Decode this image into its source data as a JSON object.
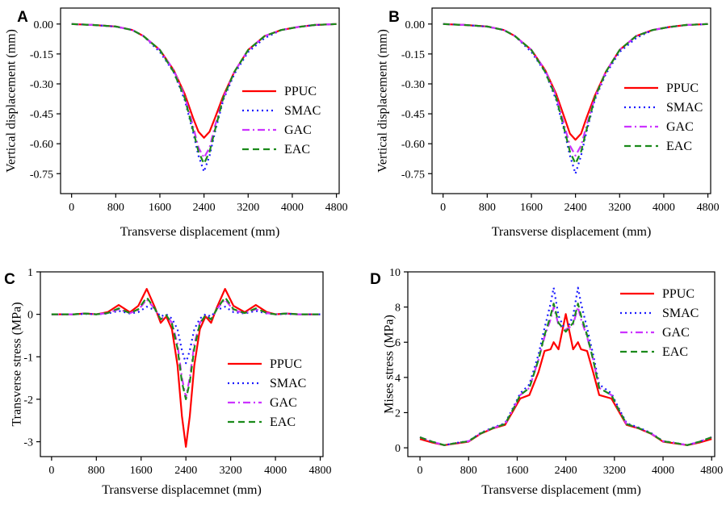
{
  "colors": {
    "PPUC": "#ff0000",
    "SMAC": "#1a1aff",
    "GAC": "#cc33ff",
    "EAC": "#1a8a1a"
  },
  "chart_data": [
    {
      "label": "A",
      "type": "line",
      "xlabel": "Transverse displacement (mm)",
      "ylabel": "Vertical displacement (mm)",
      "xlim": [
        -200,
        4850
      ],
      "ylim": [
        -0.85,
        0.08
      ],
      "xticks": [
        0,
        800,
        1600,
        2400,
        3200,
        4000,
        4800
      ],
      "yticks": [
        0.0,
        -0.15,
        -0.3,
        -0.45,
        -0.6,
        -0.75
      ],
      "ytick_labels": [
        "0.00",
        "-0.15",
        "-0.30",
        "-0.45",
        "-0.60",
        "-0.75"
      ],
      "legend_position": "center-right",
      "series": [
        {
          "name": "PPUC",
          "x": [
            0,
            400,
            800,
            1100,
            1300,
            1600,
            1850,
            2050,
            2200,
            2300,
            2400,
            2500,
            2600,
            2750,
            2950,
            3200,
            3500,
            3800,
            4100,
            4400,
            4800
          ],
          "y": [
            0,
            -0.005,
            -0.012,
            -0.03,
            -0.06,
            -0.13,
            -0.23,
            -0.35,
            -0.47,
            -0.54,
            -0.57,
            -0.54,
            -0.47,
            -0.36,
            -0.24,
            -0.13,
            -0.06,
            -0.03,
            -0.015,
            -0.005,
            0
          ]
        },
        {
          "name": "SMAC",
          "x": [
            0,
            400,
            800,
            1100,
            1300,
            1600,
            1850,
            2050,
            2200,
            2300,
            2400,
            2500,
            2600,
            2750,
            2950,
            3200,
            3500,
            3800,
            4100,
            4400,
            4800
          ],
          "y": [
            0,
            -0.005,
            -0.013,
            -0.03,
            -0.06,
            -0.14,
            -0.24,
            -0.38,
            -0.54,
            -0.66,
            -0.74,
            -0.66,
            -0.54,
            -0.38,
            -0.25,
            -0.14,
            -0.07,
            -0.03,
            -0.015,
            -0.005,
            0
          ]
        },
        {
          "name": "GAC",
          "x": [
            0,
            400,
            800,
            1100,
            1300,
            1600,
            1850,
            2050,
            2200,
            2300,
            2400,
            2500,
            2600,
            2750,
            2950,
            3200,
            3500,
            3800,
            4100,
            4400,
            4800
          ],
          "y": [
            0,
            -0.005,
            -0.012,
            -0.03,
            -0.06,
            -0.13,
            -0.23,
            -0.36,
            -0.51,
            -0.62,
            -0.67,
            -0.62,
            -0.51,
            -0.37,
            -0.24,
            -0.13,
            -0.06,
            -0.03,
            -0.015,
            -0.005,
            0
          ]
        },
        {
          "name": "EAC",
          "x": [
            0,
            400,
            800,
            1100,
            1300,
            1600,
            1850,
            2050,
            2200,
            2300,
            2400,
            2500,
            2600,
            2750,
            2950,
            3200,
            3500,
            3800,
            4100,
            4400,
            4800
          ],
          "y": [
            0,
            -0.005,
            -0.012,
            -0.03,
            -0.06,
            -0.13,
            -0.24,
            -0.37,
            -0.53,
            -0.64,
            -0.7,
            -0.64,
            -0.53,
            -0.37,
            -0.24,
            -0.13,
            -0.06,
            -0.03,
            -0.015,
            -0.005,
            0
          ]
        }
      ]
    },
    {
      "label": "B",
      "type": "line",
      "xlabel": "Transverse displacement (mm)",
      "ylabel": "Vertical displacement (mm)",
      "xlim": [
        -200,
        4850
      ],
      "ylim": [
        -0.85,
        0.08
      ],
      "xticks": [
        0,
        800,
        1600,
        2400,
        3200,
        4000,
        4800
      ],
      "yticks": [
        0.0,
        -0.15,
        -0.3,
        -0.45,
        -0.6,
        -0.75
      ],
      "ytick_labels": [
        "0.00",
        "-0.15",
        "-0.30",
        "-0.45",
        "-0.60",
        "-0.75"
      ],
      "legend_position": "center-right",
      "series": [
        {
          "name": "PPUC",
          "x": [
            0,
            400,
            800,
            1100,
            1300,
            1600,
            1850,
            2050,
            2200,
            2300,
            2400,
            2500,
            2600,
            2750,
            2950,
            3200,
            3500,
            3800,
            4100,
            4400,
            4800
          ],
          "y": [
            0,
            -0.005,
            -0.012,
            -0.03,
            -0.06,
            -0.13,
            -0.23,
            -0.35,
            -0.47,
            -0.55,
            -0.58,
            -0.55,
            -0.47,
            -0.36,
            -0.24,
            -0.13,
            -0.06,
            -0.03,
            -0.015,
            -0.005,
            0
          ]
        },
        {
          "name": "SMAC",
          "x": [
            0,
            400,
            800,
            1100,
            1300,
            1600,
            1850,
            2050,
            2200,
            2300,
            2400,
            2500,
            2600,
            2750,
            2950,
            3200,
            3500,
            3800,
            4100,
            4400,
            4800
          ],
          "y": [
            0,
            -0.005,
            -0.013,
            -0.03,
            -0.06,
            -0.14,
            -0.24,
            -0.38,
            -0.54,
            -0.66,
            -0.75,
            -0.66,
            -0.54,
            -0.38,
            -0.25,
            -0.14,
            -0.07,
            -0.03,
            -0.015,
            -0.005,
            0
          ]
        },
        {
          "name": "GAC",
          "x": [
            0,
            400,
            800,
            1100,
            1300,
            1600,
            1850,
            2050,
            2200,
            2300,
            2400,
            2500,
            2600,
            2750,
            2950,
            3200,
            3500,
            3800,
            4100,
            4400,
            4800
          ],
          "y": [
            0,
            -0.005,
            -0.012,
            -0.03,
            -0.06,
            -0.13,
            -0.23,
            -0.36,
            -0.51,
            -0.61,
            -0.66,
            -0.61,
            -0.51,
            -0.37,
            -0.24,
            -0.13,
            -0.06,
            -0.03,
            -0.015,
            -0.005,
            0
          ]
        },
        {
          "name": "EAC",
          "x": [
            0,
            400,
            800,
            1100,
            1300,
            1600,
            1850,
            2050,
            2200,
            2300,
            2400,
            2500,
            2600,
            2750,
            2950,
            3200,
            3500,
            3800,
            4100,
            4400,
            4800
          ],
          "y": [
            0,
            -0.005,
            -0.012,
            -0.03,
            -0.06,
            -0.13,
            -0.24,
            -0.37,
            -0.53,
            -0.64,
            -0.7,
            -0.64,
            -0.53,
            -0.37,
            -0.24,
            -0.13,
            -0.06,
            -0.03,
            -0.015,
            -0.005,
            0
          ]
        }
      ]
    },
    {
      "label": "C",
      "type": "line",
      "xlabel": "Transverse displacemnet (mm)",
      "ylabel": "Transverse stress (MPa)",
      "xlim": [
        -200,
        4850
      ],
      "ylim": [
        -3.35,
        1.0
      ],
      "xticks": [
        0,
        800,
        1600,
        2400,
        3200,
        4000,
        4800
      ],
      "yticks": [
        1,
        0,
        -1,
        -2,
        -3
      ],
      "ytick_labels": [
        "1",
        "0",
        "-1",
        "-2",
        "-3"
      ],
      "legend_position": "bottom-right",
      "series": [
        {
          "name": "PPUC",
          "x": [
            0,
            400,
            600,
            800,
            1000,
            1200,
            1400,
            1550,
            1700,
            1850,
            1950,
            2050,
            2150,
            2250,
            2330,
            2400,
            2470,
            2550,
            2650,
            2750,
            2850,
            2950,
            3100,
            3250,
            3450,
            3650,
            3850,
            4000,
            4200,
            4400,
            4800
          ],
          "y": [
            0,
            0,
            0.02,
            0,
            0.05,
            0.22,
            0.05,
            0.2,
            0.6,
            0.15,
            -0.2,
            -0.05,
            -0.35,
            -1.2,
            -2.4,
            -3.12,
            -2.4,
            -1.2,
            -0.35,
            -0.05,
            -0.2,
            0.15,
            0.6,
            0.2,
            0.05,
            0.22,
            0.05,
            0,
            0.02,
            0,
            0
          ]
        },
        {
          "name": "SMAC",
          "x": [
            0,
            400,
            600,
            800,
            1000,
            1200,
            1400,
            1550,
            1700,
            1850,
            1950,
            2050,
            2150,
            2250,
            2330,
            2400,
            2470,
            2550,
            2650,
            2750,
            2850,
            2950,
            3100,
            3250,
            3450,
            3650,
            3850,
            4000,
            4200,
            4400,
            4800
          ],
          "y": [
            0,
            0,
            0.01,
            0,
            0.02,
            0.08,
            0.02,
            0.05,
            0.18,
            0.1,
            -0.05,
            0,
            -0.1,
            -0.35,
            -0.85,
            -1.15,
            -0.85,
            -0.35,
            -0.1,
            0,
            -0.05,
            0.1,
            0.18,
            0.05,
            0.02,
            0.08,
            0.02,
            0,
            0.01,
            0,
            0
          ]
        },
        {
          "name": "GAC",
          "x": [
            0,
            400,
            600,
            800,
            1000,
            1200,
            1400,
            1550,
            1700,
            1850,
            1950,
            2050,
            2150,
            2250,
            2330,
            2400,
            2470,
            2550,
            2650,
            2750,
            2850,
            2950,
            3100,
            3250,
            3450,
            3650,
            3850,
            4000,
            4200,
            4400,
            4800
          ],
          "y": [
            0,
            0,
            0.02,
            0,
            0.03,
            0.12,
            0.03,
            0.1,
            0.35,
            0.12,
            -0.12,
            -0.02,
            -0.2,
            -0.7,
            -1.5,
            -1.95,
            -1.5,
            -0.7,
            -0.2,
            -0.02,
            -0.12,
            0.12,
            0.35,
            0.1,
            0.03,
            0.12,
            0.03,
            0,
            0.02,
            0,
            0
          ]
        },
        {
          "name": "EAC",
          "x": [
            0,
            400,
            600,
            800,
            1000,
            1200,
            1400,
            1550,
            1700,
            1850,
            1950,
            2050,
            2150,
            2250,
            2330,
            2400,
            2470,
            2550,
            2650,
            2750,
            2850,
            2950,
            3100,
            3250,
            3450,
            3650,
            3850,
            4000,
            4200,
            4400,
            4800
          ],
          "y": [
            0,
            0,
            0.02,
            0,
            0.03,
            0.14,
            0.03,
            0.12,
            0.4,
            0.12,
            -0.12,
            -0.02,
            -0.22,
            -0.8,
            -1.6,
            -2.0,
            -1.6,
            -0.8,
            -0.22,
            -0.02,
            -0.12,
            0.12,
            0.4,
            0.12,
            0.03,
            0.14,
            0.03,
            0,
            0.02,
            0,
            0
          ]
        }
      ]
    },
    {
      "label": "D",
      "type": "line",
      "xlabel": "Transverse displacement (mm)",
      "ylabel": "Mises stress (MPa)",
      "xlim": [
        -200,
        4850
      ],
      "ylim": [
        -0.5,
        10
      ],
      "xticks": [
        0,
        800,
        1600,
        2400,
        3200,
        4000,
        4800
      ],
      "yticks": [
        0,
        2,
        4,
        6,
        8,
        10
      ],
      "ytick_labels": [
        "0",
        "2",
        "4",
        "6",
        "8",
        "10"
      ],
      "legend_position": "top-right",
      "series": [
        {
          "name": "PPUC",
          "x": [
            0,
            200,
            400,
            600,
            800,
            1000,
            1200,
            1400,
            1550,
            1650,
            1800,
            1950,
            2050,
            2150,
            2200,
            2280,
            2400,
            2520,
            2600,
            2650,
            2750,
            2850,
            2950,
            3150,
            3250,
            3400,
            3600,
            3800,
            4000,
            4200,
            4400,
            4600,
            4800
          ],
          "y": [
            0.5,
            0.3,
            0.15,
            0.25,
            0.35,
            0.8,
            1.1,
            1.3,
            2.2,
            2.8,
            3.0,
            4.3,
            5.5,
            5.6,
            6.0,
            5.6,
            7.6,
            5.6,
            6.0,
            5.6,
            5.5,
            4.3,
            3.0,
            2.8,
            2.2,
            1.3,
            1.1,
            0.8,
            0.35,
            0.25,
            0.15,
            0.3,
            0.5
          ]
        },
        {
          "name": "SMAC",
          "x": [
            0,
            200,
            400,
            600,
            800,
            1000,
            1200,
            1400,
            1550,
            1650,
            1800,
            1950,
            2050,
            2150,
            2200,
            2280,
            2400,
            2520,
            2600,
            2650,
            2750,
            2850,
            2950,
            3150,
            3250,
            3400,
            3600,
            3800,
            4000,
            4200,
            4400,
            4600,
            4800
          ],
          "y": [
            0.6,
            0.35,
            0.15,
            0.28,
            0.38,
            0.85,
            1.15,
            1.4,
            2.4,
            3.1,
            3.6,
            5.3,
            6.8,
            8.2,
            9.1,
            7.5,
            6.6,
            7.5,
            9.1,
            8.2,
            6.8,
            5.3,
            3.6,
            3.1,
            2.4,
            1.4,
            1.15,
            0.85,
            0.38,
            0.28,
            0.15,
            0.35,
            0.6
          ]
        },
        {
          "name": "GAC",
          "x": [
            0,
            200,
            400,
            600,
            800,
            1000,
            1200,
            1400,
            1550,
            1650,
            1800,
            1950,
            2050,
            2150,
            2200,
            2280,
            2400,
            2520,
            2600,
            2650,
            2750,
            2850,
            2950,
            3150,
            3250,
            3400,
            3600,
            3800,
            4000,
            4200,
            4400,
            4600,
            4800
          ],
          "y": [
            0.6,
            0.35,
            0.15,
            0.27,
            0.37,
            0.82,
            1.12,
            1.35,
            2.3,
            3.0,
            3.4,
            5.0,
            6.3,
            7.3,
            8.0,
            7.0,
            6.7,
            7.0,
            8.0,
            7.3,
            6.3,
            5.0,
            3.4,
            3.0,
            2.3,
            1.35,
            1.12,
            0.82,
            0.37,
            0.27,
            0.15,
            0.35,
            0.6
          ]
        },
        {
          "name": "EAC",
          "x": [
            0,
            200,
            400,
            600,
            800,
            1000,
            1200,
            1400,
            1550,
            1650,
            1800,
            1950,
            2050,
            2150,
            2200,
            2280,
            2400,
            2520,
            2600,
            2650,
            2750,
            2850,
            2950,
            3150,
            3250,
            3400,
            3600,
            3800,
            4000,
            4200,
            4400,
            4600,
            4800
          ],
          "y": [
            0.6,
            0.35,
            0.15,
            0.27,
            0.37,
            0.82,
            1.12,
            1.35,
            2.3,
            3.0,
            3.4,
            5.0,
            6.4,
            7.5,
            8.2,
            7.1,
            6.6,
            7.1,
            8.2,
            7.5,
            6.4,
            5.0,
            3.4,
            3.0,
            2.3,
            1.35,
            1.12,
            0.82,
            0.37,
            0.27,
            0.15,
            0.35,
            0.6
          ]
        }
      ]
    }
  ]
}
